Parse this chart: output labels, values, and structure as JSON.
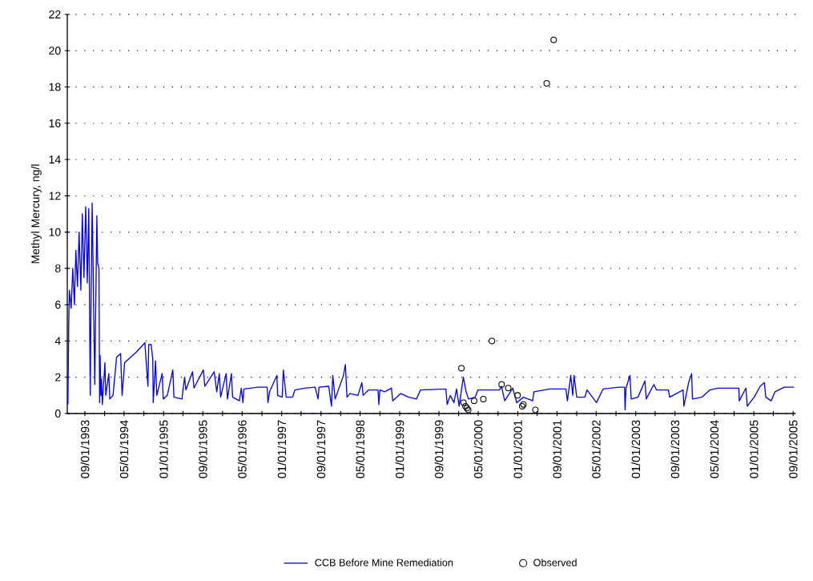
{
  "chart_data": {
    "type": "line",
    "ylabel": "Methyl Mercury, ng/l",
    "xlim": [
      "1993-05-15",
      "2005-09-15"
    ],
    "ylim": [
      0,
      22
    ],
    "yticks": [
      0,
      2,
      4,
      6,
      8,
      10,
      12,
      14,
      16,
      18,
      20,
      22
    ],
    "xticks": [
      {
        "value": "1993-09-01",
        "label": "09/01/1993"
      },
      {
        "value": "1994-01-01",
        "label": null
      },
      {
        "value": "1994-05-01",
        "label": "05/01/1994"
      },
      {
        "value": "1994-09-01",
        "label": null
      },
      {
        "value": "1995-01-01",
        "label": "01/01/1995"
      },
      {
        "value": "1995-05-01",
        "label": null
      },
      {
        "value": "1995-09-01",
        "label": "09/01/1995"
      },
      {
        "value": "1996-01-01",
        "label": null
      },
      {
        "value": "1996-05-01",
        "label": "05/01/1996"
      },
      {
        "value": "1996-09-01",
        "label": null
      },
      {
        "value": "1997-01-01",
        "label": "01/01/1997"
      },
      {
        "value": "1997-05-01",
        "label": null
      },
      {
        "value": "1997-09-01",
        "label": "09/01/1997"
      },
      {
        "value": "1998-01-01",
        "label": null
      },
      {
        "value": "1998-05-01",
        "label": "05/01/1998"
      },
      {
        "value": "1998-09-01",
        "label": null
      },
      {
        "value": "1999-01-01",
        "label": "01/01/1999"
      },
      {
        "value": "1999-05-01",
        "label": null
      },
      {
        "value": "1999-09-01",
        "label": "09/01/1999"
      },
      {
        "value": "2000-01-01",
        "label": null
      },
      {
        "value": "2000-05-01",
        "label": "05/01/2000"
      },
      {
        "value": "2000-09-01",
        "label": null
      },
      {
        "value": "2001-01-01",
        "label": "01/01/2001"
      },
      {
        "value": "2001-05-01",
        "label": null
      },
      {
        "value": "2001-09-01",
        "label": "09/01/2001"
      },
      {
        "value": "2002-01-01",
        "label": null
      },
      {
        "value": "2002-05-01",
        "label": "05/01/2002"
      },
      {
        "value": "2002-09-01",
        "label": null
      },
      {
        "value": "2003-01-01",
        "label": "01/01/2003"
      },
      {
        "value": "2003-05-01",
        "label": null
      },
      {
        "value": "2003-09-01",
        "label": "09/01/2003"
      },
      {
        "value": "2004-01-01",
        "label": null
      },
      {
        "value": "2004-05-01",
        "label": "05/01/2004"
      },
      {
        "value": "2004-09-01",
        "label": null
      },
      {
        "value": "2005-01-01",
        "label": "01/01/2005"
      },
      {
        "value": "2005-05-01",
        "label": null
      },
      {
        "value": "2005-09-01",
        "label": "09/01/2005"
      }
    ],
    "grid": "y",
    "legend": "bottom",
    "series": [
      {
        "name": "CCB Before Mine Remediation",
        "color": "#0000ff",
        "marker": "none",
        "x": [
          "1993-05-19",
          "1993-05-24",
          "1993-05-28",
          "1993-06-08",
          "1993-06-18",
          "1993-06-28",
          "1993-07-07",
          "1993-07-17",
          "1993-07-27",
          "1993-08-07",
          "1993-08-16",
          "1993-08-26",
          "1993-09-06",
          "1993-09-16",
          "1993-09-25",
          "1993-10-04",
          "1993-10-10",
          "1993-10-16",
          "1993-11-01",
          "1993-11-14",
          "1993-11-19",
          "1993-11-27",
          "1993-12-01",
          "1993-12-04",
          "1993-12-09",
          "1993-12-13",
          "1993-12-18",
          "1994-01-03",
          "1994-01-08",
          "1994-01-27",
          "1994-02-02",
          "1994-02-22",
          "1994-03-16",
          "1994-04-10",
          "1994-04-19",
          "1994-05-05",
          "1994-07-18",
          "1994-09-07",
          "1994-09-26",
          "1994-10-01",
          "1994-10-16",
          "1994-10-26",
          "1994-10-29",
          "1994-11-12",
          "1994-11-20",
          "1994-12-23",
          "1994-12-30",
          "1995-01-24",
          "1995-02-27",
          "1995-03-06",
          "1995-04-25",
          "1995-05-01",
          "1995-05-11",
          "1995-05-19",
          "1995-06-29",
          "1995-07-08",
          "1995-09-04",
          "1995-09-13",
          "1995-11-10",
          "1995-11-26",
          "1995-12-12",
          "1995-12-20",
          "1996-01-23",
          "1996-01-31",
          "1996-02-25",
          "1996-03-03",
          "1996-04-14",
          "1996-04-26",
          "1996-05-06",
          "1996-05-12",
          "1996-08-08",
          "1996-10-03",
          "1996-10-08",
          "1996-10-18",
          "1996-12-02",
          "1996-12-07",
          "1997-01-04",
          "1997-01-11",
          "1997-01-29",
          "1997-03-09",
          "1997-03-24",
          "1997-05-23",
          "1997-07-27",
          "1997-08-14",
          "1997-08-20",
          "1997-10-19",
          "1997-11-05",
          "1997-11-13",
          "1997-11-28",
          "1998-01-18",
          "1998-01-30",
          "1998-02-09",
          "1998-02-27",
          "1998-04-18",
          "1998-05-12",
          "1998-05-20",
          "1998-06-23",
          "1998-08-20",
          "1998-08-25",
          "1998-09-01",
          "1998-09-30",
          "1998-11-11",
          "1998-11-19",
          "1999-01-08",
          "1999-02-26",
          "1999-04-15",
          "1999-05-10",
          "1999-10-14",
          "1999-10-22",
          "1999-11-10",
          "1999-12-03",
          "1999-12-19",
          "2000-01-04",
          "2000-01-30",
          "2000-02-16",
          "2000-03-02",
          "2000-04-13",
          "2000-04-29",
          "2000-09-09",
          "2000-09-22",
          "2000-10-12",
          "2000-12-01",
          "2000-12-25",
          "2001-02-05",
          "2001-04-03",
          "2001-04-11",
          "2001-07-19",
          "2001-10-26",
          "2001-11-04",
          "2001-11-25",
          "2001-12-07",
          "2001-12-15",
          "2002-01-01",
          "2002-02-20",
          "2002-03-06",
          "2002-05-03",
          "2002-06-13",
          "2002-09-21",
          "2002-10-24",
          "2002-10-27",
          "2002-11-02",
          "2002-11-26",
          "2002-12-04",
          "2003-01-15",
          "2003-02-27",
          "2003-03-07",
          "2003-04-23",
          "2003-05-09",
          "2003-07-22",
          "2003-07-30",
          "2003-10-21",
          "2003-10-26",
          "2003-11-24",
          "2003-12-13",
          "2003-12-18",
          "2004-02-15",
          "2004-04-04",
          "2004-05-23",
          "2004-09-30",
          "2004-10-03",
          "2004-11-13",
          "2004-11-21",
          "2005-01-03",
          "2005-02-09",
          "2005-03-07",
          "2005-03-16",
          "2005-04-18",
          "2005-05-12",
          "2005-07-09",
          "2005-09-06"
        ],
        "values": [
          0.5,
          5.0,
          6.8,
          5.8,
          8.0,
          6.0,
          9.0,
          7.0,
          10.0,
          6.8,
          11.0,
          7.5,
          11.4,
          7.2,
          11.3,
          1.0,
          7.1,
          11.6,
          1.6,
          10.9,
          8.3,
          8.0,
          0.6,
          3.2,
          1.0,
          1.9,
          0.5,
          2.8,
          1.0,
          2.2,
          0.8,
          1.0,
          3.1,
          3.3,
          1.0,
          2.8,
          3.4,
          3.9,
          1.5,
          3.8,
          3.8,
          3.0,
          0.6,
          2.9,
          1.0,
          2.2,
          0.8,
          1.0,
          2.4,
          0.9,
          0.8,
          1.3,
          2.0,
          1.3,
          2.3,
          1.4,
          2.4,
          1.5,
          2.3,
          1.2,
          2.2,
          0.9,
          2.2,
          0.8,
          2.2,
          0.9,
          0.7,
          1.4,
          0.6,
          1.35,
          1.45,
          1.45,
          0.6,
          1.2,
          2.1,
          1.0,
          0.9,
          2.4,
          0.9,
          0.9,
          1.3,
          1.4,
          1.45,
          0.8,
          1.45,
          1.5,
          0.4,
          2.1,
          0.8,
          2.1,
          2.7,
          0.9,
          1.1,
          1.0,
          1.7,
          1.0,
          1.3,
          1.3,
          0.5,
          1.3,
          1.2,
          1.4,
          0.7,
          1.1,
          0.9,
          0.8,
          1.3,
          1.35,
          0.5,
          1.0,
          0.6,
          1.35,
          0.4,
          2.0,
          1.2,
          0.8,
          0.9,
          1.3,
          1.3,
          1.5,
          0.7,
          1.4,
          0.6,
          0.9,
          0.7,
          1.2,
          1.35,
          1.35,
          0.7,
          2.1,
          1.0,
          2.1,
          0.9,
          0.9,
          1.3,
          0.6,
          1.35,
          1.45,
          1.45,
          0.2,
          1.4,
          2.1,
          0.8,
          0.9,
          1.8,
          0.8,
          1.6,
          1.3,
          1.3,
          0.9,
          1.3,
          0.4,
          1.7,
          2.2,
          0.8,
          0.9,
          1.3,
          1.4,
          1.4,
          0.7,
          1.4,
          0.4,
          0.9,
          1.5,
          1.7,
          0.9,
          0.7,
          1.2,
          1.45,
          1.45
        ]
      },
      {
        "name": "Observed",
        "type": "scatter",
        "color": "#000000",
        "marker": "circle",
        "x": [
          "2000-01-18",
          "2000-01-31",
          "2000-02-12",
          "2000-02-21",
          "2000-02-29",
          "2000-04-06",
          "2000-06-02",
          "2000-07-25",
          "2000-09-23",
          "2000-11-03",
          "2000-12-31",
          "2001-01-28",
          "2001-02-05",
          "2001-04-20",
          "2001-06-29",
          "2001-08-11"
        ],
        "values": [
          2.5,
          0.6,
          0.4,
          0.3,
          0.2,
          0.7,
          0.8,
          4.0,
          1.6,
          1.4,
          1.0,
          0.4,
          0.5,
          0.2,
          18.2,
          20.6
        ]
      }
    ]
  }
}
